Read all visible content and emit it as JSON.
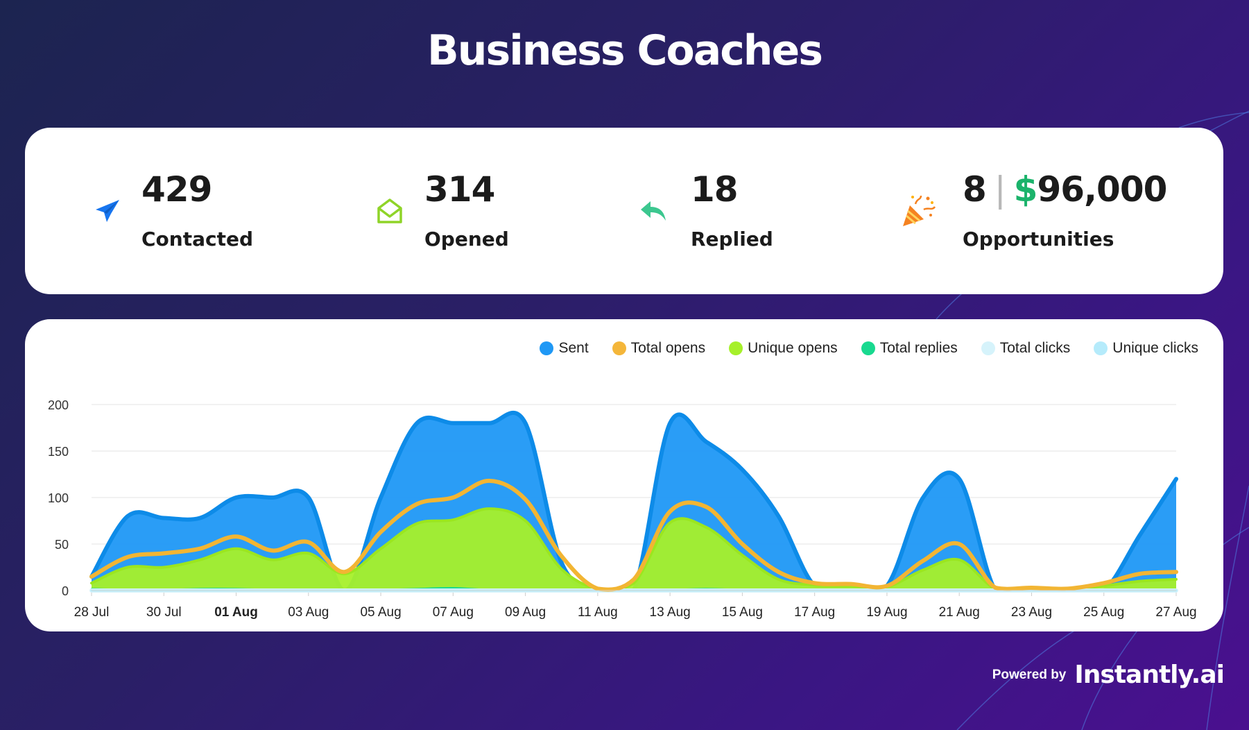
{
  "page": {
    "title": "Business Coaches"
  },
  "stats": [
    {
      "icon": "paper-plane-icon",
      "value": "429",
      "label": "Contacted"
    },
    {
      "icon": "open-envelope-icon",
      "value": "314",
      "label": "Opened"
    },
    {
      "icon": "reply-arrow-icon",
      "value": "18",
      "label": "Replied"
    },
    {
      "icon": "party-popper-icon",
      "value": "8",
      "currency_symbol": "$",
      "amount": "96,000",
      "label": "Opportunities"
    }
  ],
  "colors": {
    "sent": "#1f98f5",
    "total_opens": "#f4b63a",
    "unique_opens": "#a6f02a",
    "total_replies": "#18d98f",
    "total_clicks": "#d6f3fb",
    "unique_clicks": "#b5ebfb",
    "money": "#1bb36b"
  },
  "chart_data": {
    "type": "area",
    "title": "",
    "xlabel": "",
    "ylabel": "",
    "ylim": [
      0,
      200
    ],
    "yticks": [
      "0",
      "50",
      "100",
      "150",
      "200"
    ],
    "grid": true,
    "legend_position": "top-right",
    "x": [
      "28 Jul",
      "29 Jul",
      "30 Jul",
      "31 Jul",
      "01 Aug",
      "02 Aug",
      "03 Aug",
      "04 Aug",
      "05 Aug",
      "06 Aug",
      "07 Aug",
      "08 Aug",
      "09 Aug",
      "10 Aug",
      "11 Aug",
      "12 Aug",
      "13 Aug",
      "14 Aug",
      "15 Aug",
      "16 Aug",
      "17 Aug",
      "18 Aug",
      "19 Aug",
      "20 Aug",
      "21 Aug",
      "22 Aug",
      "23 Aug",
      "24 Aug",
      "25 Aug",
      "26 Aug",
      "27 Aug"
    ],
    "xtick_labels": [
      "28 Jul",
      "30 Jul",
      "01 Aug",
      "03 Aug",
      "05 Aug",
      "07 Aug",
      "09 Aug",
      "11 Aug",
      "13 Aug",
      "15 Aug",
      "17 Aug",
      "19 Aug",
      "21 Aug",
      "23 Aug",
      "25 Aug",
      "27 Aug"
    ],
    "highlighted_xtick": "01 Aug",
    "series": [
      {
        "name": "Sent",
        "values": [
          15,
          80,
          78,
          78,
          100,
          100,
          100,
          0,
          100,
          180,
          180,
          180,
          180,
          30,
          0,
          0,
          180,
          160,
          130,
          80,
          5,
          5,
          5,
          100,
          120,
          0,
          0,
          0,
          0,
          60,
          120
        ]
      },
      {
        "name": "Total opens",
        "values": [
          15,
          36,
          40,
          45,
          58,
          43,
          52,
          20,
          63,
          93,
          100,
          118,
          98,
          37,
          2,
          12,
          85,
          90,
          50,
          20,
          8,
          7,
          5,
          32,
          50,
          3,
          3,
          2,
          8,
          18,
          20
        ]
      },
      {
        "name": "Unique opens",
        "values": [
          8,
          25,
          25,
          33,
          45,
          33,
          40,
          18,
          45,
          72,
          76,
          88,
          75,
          23,
          2,
          8,
          73,
          68,
          38,
          12,
          6,
          5,
          4,
          22,
          33,
          2,
          2,
          1,
          5,
          10,
          12
        ]
      },
      {
        "name": "Total replies",
        "values": [
          2,
          1,
          1,
          2,
          2,
          1,
          1,
          0,
          1,
          2,
          3,
          1,
          1,
          0,
          0,
          0,
          1,
          2,
          1,
          1,
          0,
          0,
          0,
          1,
          1,
          0,
          0,
          0,
          0,
          0,
          1
        ]
      },
      {
        "name": "Total clicks",
        "values": [
          0,
          0,
          0,
          0,
          0,
          0,
          0,
          0,
          0,
          0,
          0,
          0,
          0,
          0,
          0,
          0,
          0,
          0,
          0,
          0,
          0,
          0,
          0,
          0,
          0,
          0,
          0,
          0,
          0,
          0,
          0
        ]
      },
      {
        "name": "Unique clicks",
        "values": [
          0,
          0,
          0,
          0,
          0,
          0,
          0,
          0,
          0,
          0,
          0,
          0,
          0,
          0,
          0,
          0,
          0,
          0,
          0,
          0,
          0,
          0,
          0,
          0,
          0,
          0,
          0,
          0,
          0,
          0,
          0
        ]
      }
    ]
  },
  "footer": {
    "powered_by": "Powered by",
    "brand": "Instantly.ai"
  }
}
